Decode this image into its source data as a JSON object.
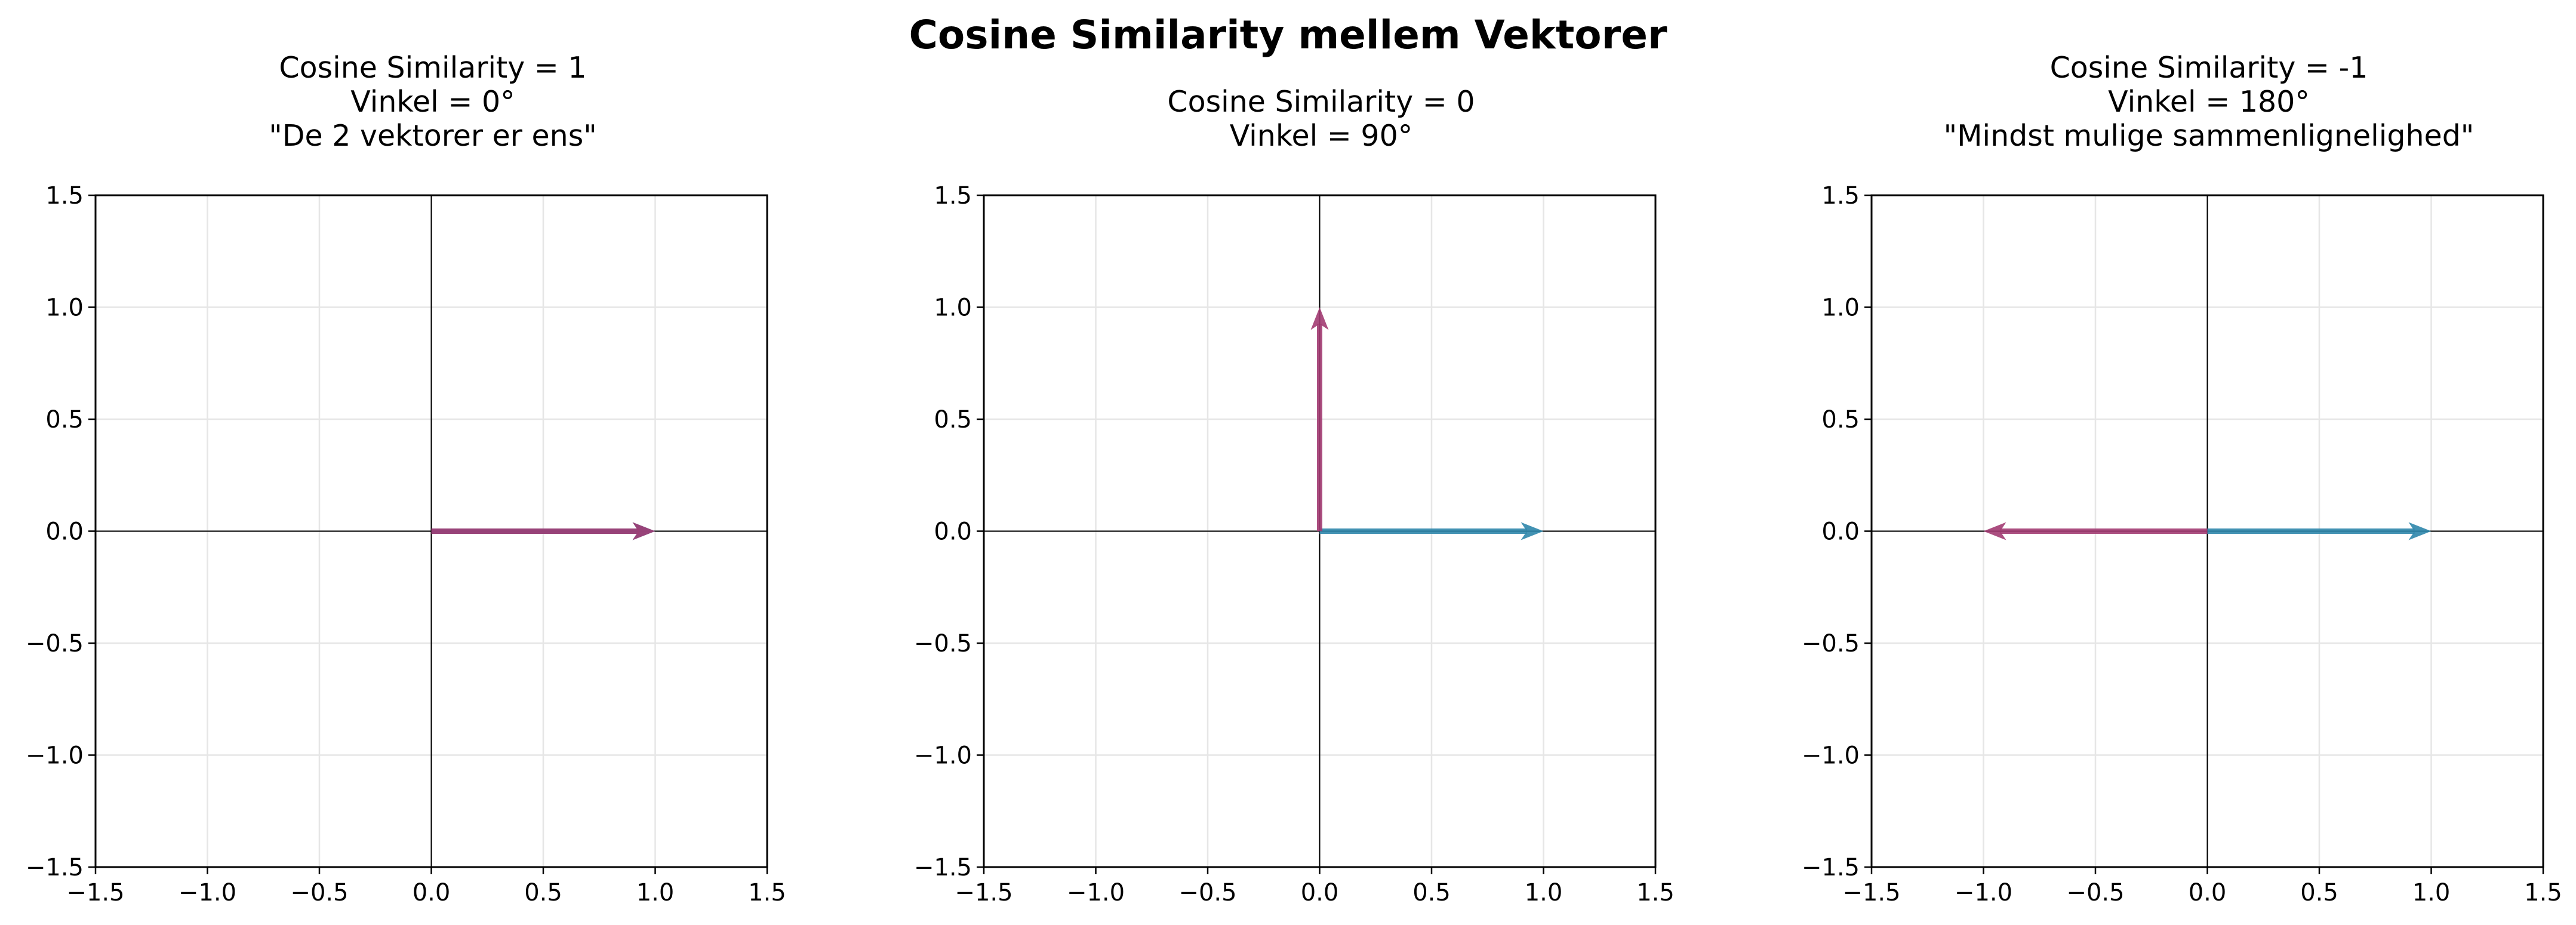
{
  "title": "Cosine Similarity mellem Vektorer",
  "colors": {
    "vector_a": "#2E86AB",
    "vector_b": "#A23B72",
    "grid": "#e6e6e6",
    "axis_line": "#000000"
  },
  "chart_data": [
    {
      "type": "vector",
      "title_lines": [
        "Cosine Similarity = 1",
        "Vinkel = 0°",
        "\"De 2 vektorer er ens\""
      ],
      "xlim": [
        -1.5,
        1.5
      ],
      "ylim": [
        -1.5,
        1.5
      ],
      "xticks": [
        "−1.5",
        "−1.0",
        "−0.5",
        "0.0",
        "0.5",
        "1.0",
        "1.5"
      ],
      "yticks": [
        "−1.5",
        "−1.0",
        "−0.5",
        "0.0",
        "0.5",
        "1.0",
        "1.5"
      ],
      "grid": true,
      "vectors": [
        {
          "color": "#2E86AB",
          "x": 1,
          "y": 0
        },
        {
          "color": "#A23B72",
          "x": 1,
          "y": 0
        }
      ]
    },
    {
      "type": "vector",
      "title_lines": [
        "Cosine Similarity = 0",
        "Vinkel = 90°"
      ],
      "xlim": [
        -1.5,
        1.5
      ],
      "ylim": [
        -1.5,
        1.5
      ],
      "xticks": [
        "−1.5",
        "−1.0",
        "−0.5",
        "0.0",
        "0.5",
        "1.0",
        "1.5"
      ],
      "yticks": [
        "−1.5",
        "−1.0",
        "−0.5",
        "0.0",
        "0.5",
        "1.0",
        "1.5"
      ],
      "grid": true,
      "vectors": [
        {
          "color": "#2E86AB",
          "x": 1,
          "y": 0
        },
        {
          "color": "#A23B72",
          "x": 0,
          "y": 1
        }
      ]
    },
    {
      "type": "vector",
      "title_lines": [
        "Cosine Similarity = -1",
        "Vinkel = 180°",
        "\"Mindst mulige sammenlignelighed\""
      ],
      "xlim": [
        -1.5,
        1.5
      ],
      "ylim": [
        -1.5,
        1.5
      ],
      "xticks": [
        "−1.5",
        "−1.0",
        "−0.5",
        "0.0",
        "0.5",
        "1.0",
        "1.5"
      ],
      "yticks": [
        "−1.5",
        "−1.0",
        "−0.5",
        "0.0",
        "0.5",
        "1.0",
        "1.5"
      ],
      "grid": true,
      "vectors": [
        {
          "color": "#2E86AB",
          "x": 1,
          "y": 0
        },
        {
          "color": "#A23B72",
          "x": -1,
          "y": 0
        }
      ]
    }
  ]
}
